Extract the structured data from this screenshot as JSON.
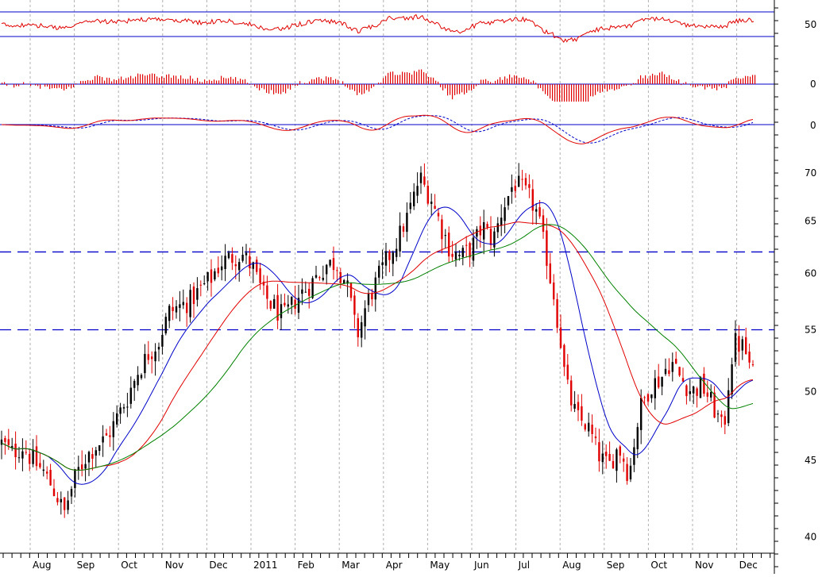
{
  "colors": {
    "background": "#ffffff",
    "grid": "#b0b0b0",
    "reference_line": "#0000c8",
    "candle_up": "#000000",
    "candle_down": "#e00000",
    "ma_fast": "#0000c8",
    "ma_medium": "#e00000",
    "ma_slow": "#008000",
    "indicator": "#e00000"
  },
  "chart_data": {
    "type": "candlestick",
    "x_axis": {
      "months": [
        "Aug",
        "Sep",
        "Oct",
        "Nov",
        "Dec",
        "2011",
        "Feb",
        "Mar",
        "Apr",
        "May",
        "Jun",
        "Jul",
        "Aug",
        "Sep",
        "Oct",
        "Nov",
        "Dec"
      ],
      "grid": "vertical dashed at month starts"
    },
    "price_panel": {
      "y_ticks": [
        40,
        45,
        50,
        55,
        60,
        65,
        70
      ],
      "ylim": [
        39,
        72
      ],
      "reference_lines": [
        62,
        55
      ],
      "weekly_closes": [
        46.2,
        45.5,
        46.0,
        45.0,
        44.2,
        43.0,
        41.5,
        43.8,
        45.2,
        46.0,
        46.5,
        48.0,
        49.5,
        51.5,
        53.0,
        54.0,
        56.5,
        57.0,
        57.5,
        58.5,
        59.5,
        61.0,
        61.5,
        61.8,
        60.5,
        58.0,
        57.0,
        56.0,
        57.5,
        58.5,
        59.5,
        60.8,
        61.0,
        59.0,
        54.5,
        57.5,
        59.5,
        61.5,
        63.5,
        66.0,
        69.5,
        67.5,
        64.5,
        62.0,
        61.5,
        62.5,
        64.5,
        63.0,
        66.5,
        69.0,
        68.0,
        66.5,
        62.0,
        57.0,
        50.5,
        48.0,
        47.5,
        45.5,
        44.5,
        46.0,
        44.0,
        48.5,
        50.5,
        51.0,
        52.5,
        51.0,
        50.0,
        50.5,
        49.0,
        47.0,
        54.0,
        53.5,
        51.0
      ]
    },
    "oscillator_1": {
      "type": "line",
      "y_ticks": [
        50
      ],
      "reference_levels": [
        55,
        45
      ]
    },
    "oscillator_2": {
      "type": "histogram",
      "y_ticks": [
        0
      ],
      "reference_levels": [
        0
      ]
    },
    "oscillator_3": {
      "type": "line",
      "y_ticks": [
        0
      ],
      "reference_levels": [
        0
      ],
      "series": [
        "solid",
        "dashed"
      ]
    }
  }
}
